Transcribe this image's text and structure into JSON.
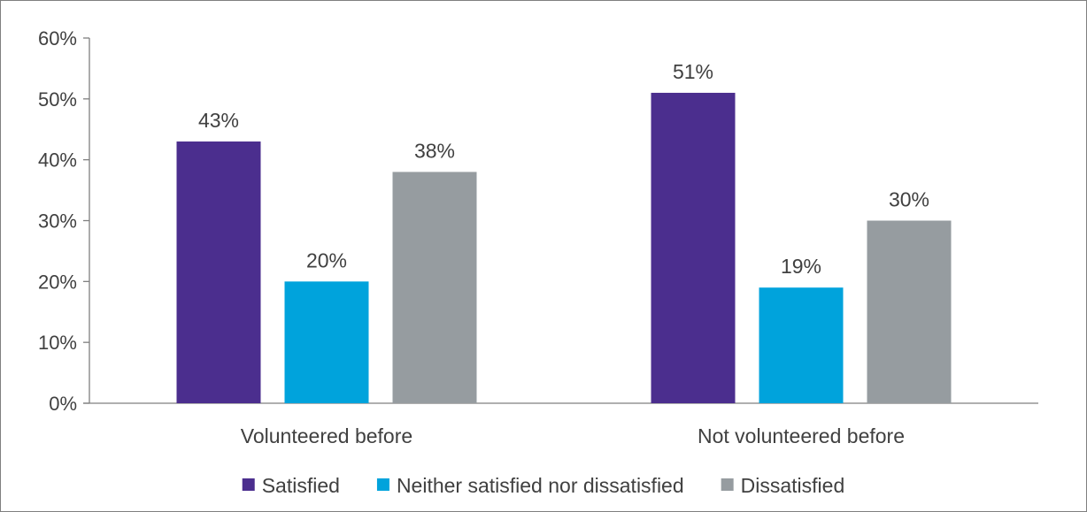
{
  "chart_data": {
    "type": "bar",
    "title": "",
    "xlabel": "",
    "ylabel": "",
    "categories": [
      "Volunteered before",
      "Not volunteered before"
    ],
    "series": [
      {
        "name": "Satisfied",
        "color": "#4b2e8e",
        "values": [
          43,
          51
        ],
        "labels": [
          "43%",
          "51%"
        ]
      },
      {
        "name": "Neither satisfied nor dissatisfied",
        "color": "#00a3dc",
        "values": [
          20,
          19
        ],
        "labels": [
          "20%",
          "19%"
        ]
      },
      {
        "name": "Dissatisfied",
        "color": "#969ca0",
        "values": [
          38,
          30
        ],
        "labels": [
          "38%",
          "30%"
        ]
      }
    ],
    "ylim": [
      0,
      60
    ],
    "yticks": [
      0,
      10,
      20,
      30,
      40,
      50,
      60
    ],
    "ytick_labels": [
      "0%",
      "10%",
      "20%",
      "30%",
      "40%",
      "50%",
      "60%"
    ],
    "grid": false,
    "legend_position": "bottom"
  }
}
